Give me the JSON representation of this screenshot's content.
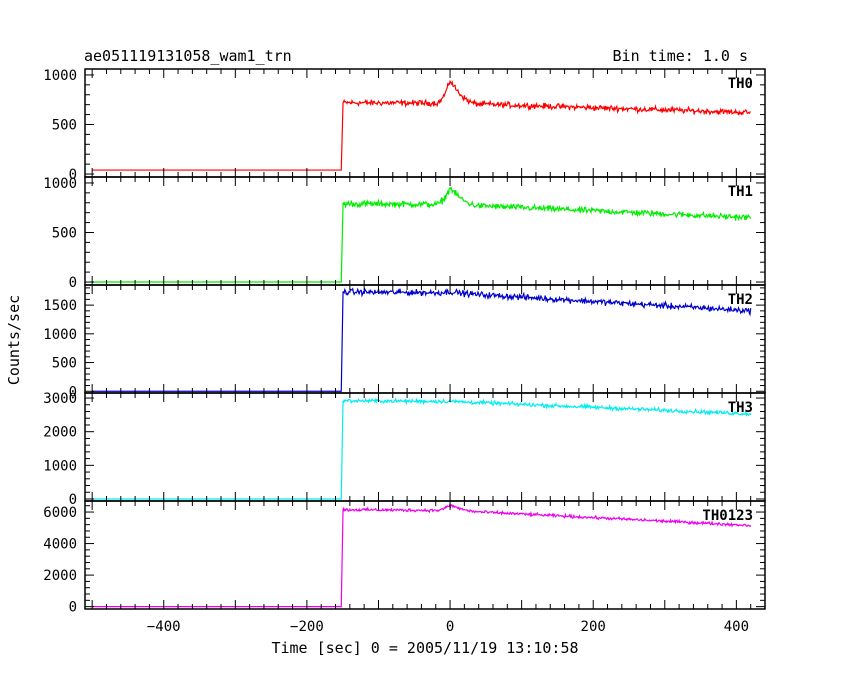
{
  "header": {
    "title": "ae051119131058_wam1_trn",
    "bin_time": "Bin time: 1.0 s"
  },
  "chart_data": {
    "type": "line",
    "xlabel": "Time [sec] 0 = 2005/11/19 13:10:58",
    "ylabel": "Counts/sec",
    "xlim": [
      -510,
      440
    ],
    "x_ticks": [
      -400,
      -200,
      0,
      200,
      400
    ],
    "x_tick_labels": [
      "−400",
      "−200",
      "0",
      "200",
      "400"
    ],
    "onset_x": -150,
    "x_range": [
      -500,
      420
    ],
    "panels": [
      {
        "name": "TH0",
        "color": "#ff0000",
        "ylim": [
          -30,
          1060
        ],
        "y_ticks": [
          0,
          500,
          1000
        ],
        "y_tick_labels": [
          "0",
          "500",
          "1000"
        ],
        "pre_level": 40,
        "jump_level": 720,
        "peak_level": 950,
        "end_level": 620,
        "noise": 28
      },
      {
        "name": "TH1",
        "color": "#00ee00",
        "ylim": [
          -30,
          1060
        ],
        "y_ticks": [
          0,
          500,
          1000
        ],
        "y_tick_labels": [
          "0",
          "500",
          "1000"
        ],
        "pre_level": 0,
        "jump_level": 790,
        "peak_level": 960,
        "end_level": 650,
        "noise": 30
      },
      {
        "name": "TH2",
        "color": "#0000cc",
        "ylim": [
          -30,
          1850
        ],
        "y_ticks": [
          0,
          500,
          1000,
          1500
        ],
        "y_tick_labels": [
          "0",
          "500",
          "1000",
          "1500"
        ],
        "pre_level": 0,
        "jump_level": 1730,
        "peak_level": 1750,
        "end_level": 1400,
        "noise": 50
      },
      {
        "name": "TH3",
        "color": "#00eeee",
        "ylim": [
          -60,
          3150
        ],
        "y_ticks": [
          0,
          1000,
          2000,
          3000
        ],
        "y_tick_labels": [
          "0",
          "1000",
          "2000",
          "3000"
        ],
        "pre_level": 0,
        "jump_level": 2920,
        "peak_level": 2920,
        "end_level": 2530,
        "noise": 55
      },
      {
        "name": "TH0123",
        "color": "#ee00ee",
        "ylim": [
          -150,
          6700
        ],
        "y_ticks": [
          0,
          2000,
          4000,
          6000
        ],
        "y_tick_labels": [
          "0",
          "2000",
          "4000",
          "6000"
        ],
        "pre_level": 0,
        "jump_level": 6150,
        "peak_level": 6500,
        "end_level": 5150,
        "noise": 90
      }
    ]
  }
}
